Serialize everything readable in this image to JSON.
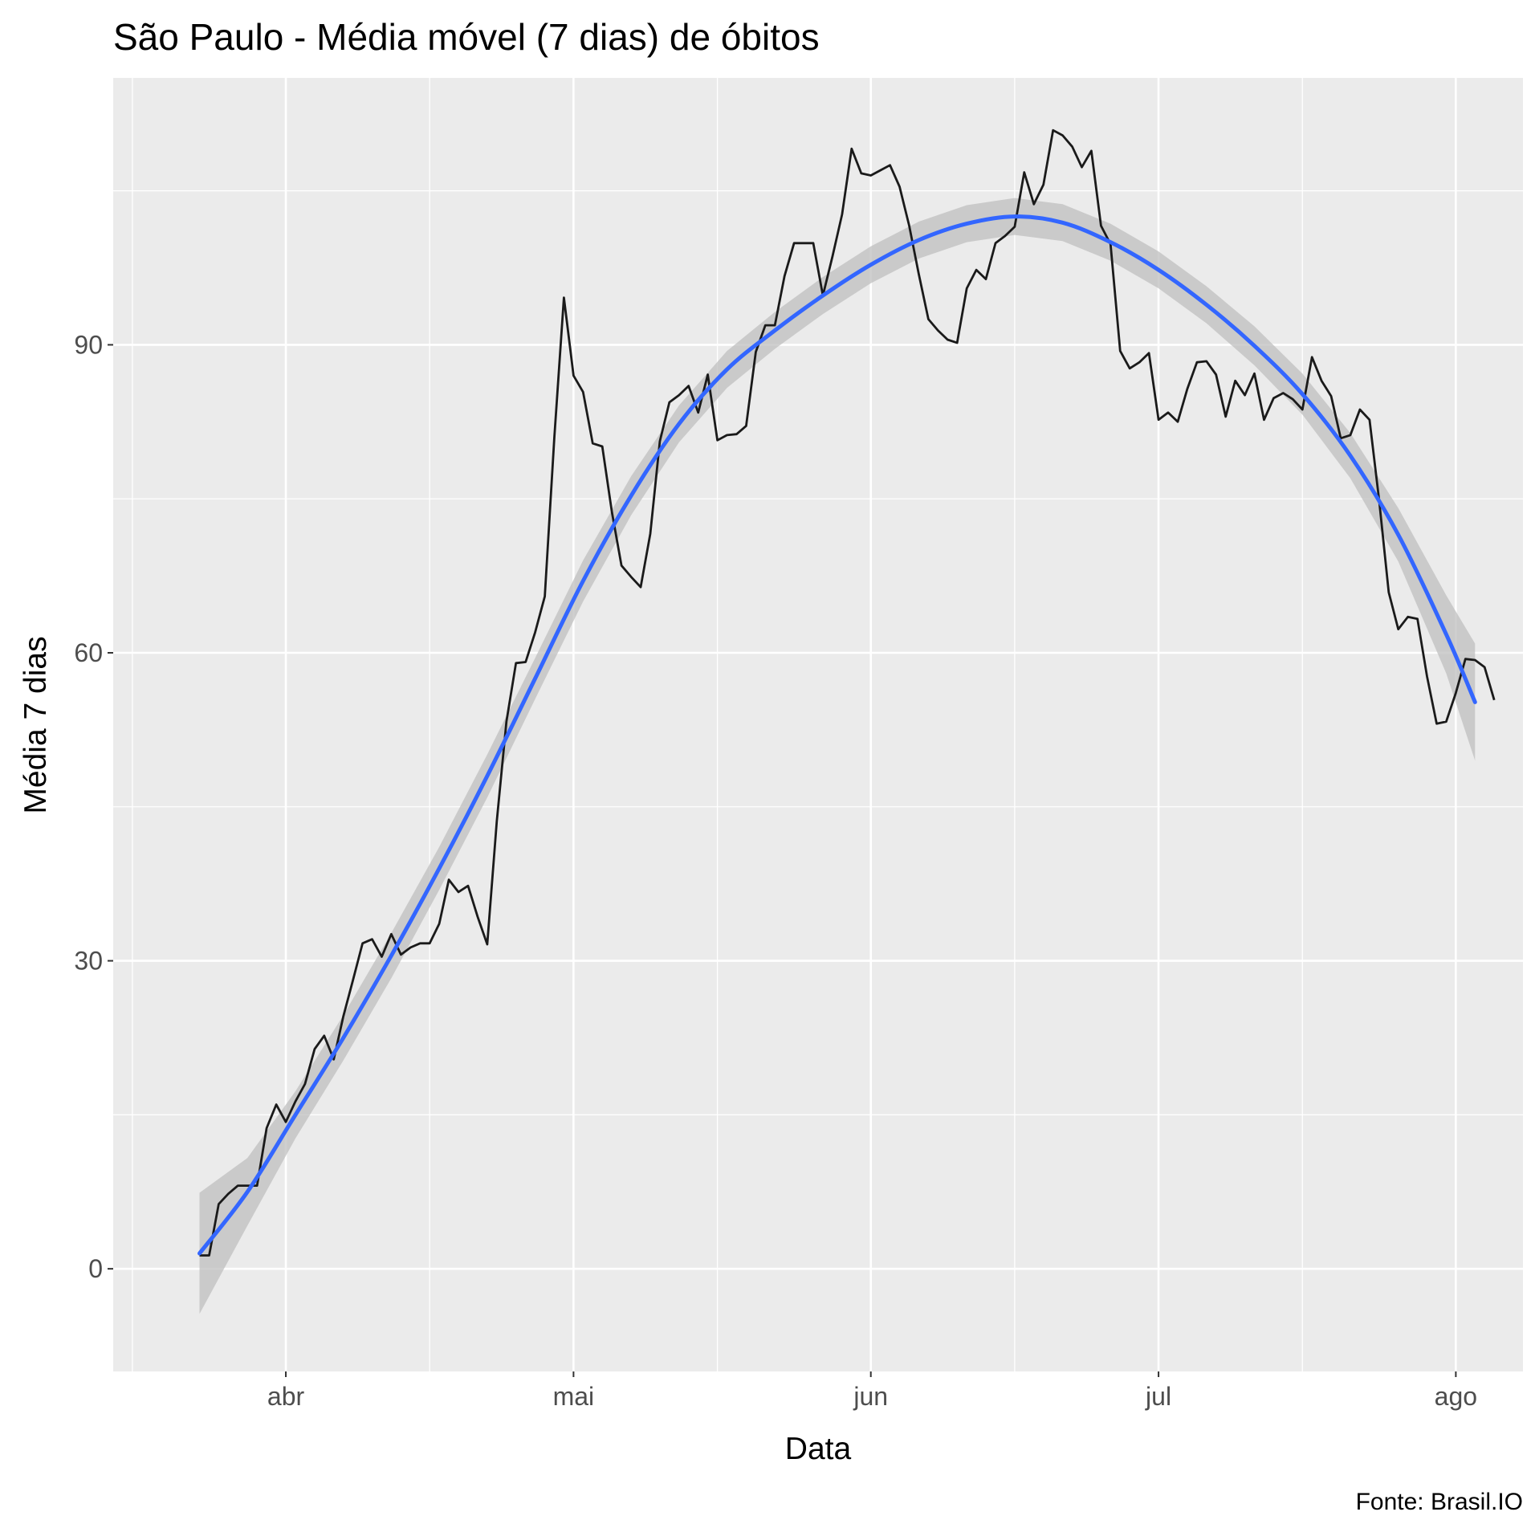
{
  "chart_data": {
    "type": "line",
    "title": "São Paulo - Média móvel (7 dias) de óbitos",
    "xlabel": "Data",
    "ylabel": "Média 7 dias",
    "caption": "Fonte: Brasil.IO",
    "x_axis": {
      "type": "date",
      "range": [
        "2020-03-14",
        "2020-08-08"
      ],
      "ticks": [
        {
          "date": "2020-04-01",
          "label": "abr"
        },
        {
          "date": "2020-05-01",
          "label": "mai"
        },
        {
          "date": "2020-06-01",
          "label": "jun"
        },
        {
          "date": "2020-07-01",
          "label": "jul"
        },
        {
          "date": "2020-08-01",
          "label": "ago"
        }
      ],
      "minor_breaks": [
        "2020-03-16",
        "2020-04-16",
        "2020-05-16",
        "2020-06-16",
        "2020-07-16"
      ]
    },
    "y_axis": {
      "range": [
        -10,
        116
      ],
      "ticks": [
        0,
        30,
        60,
        90
      ],
      "minor_breaks": [
        15,
        45,
        75,
        105
      ]
    },
    "grid": true,
    "colors": {
      "panel": "#ebebeb",
      "grid": "#ffffff",
      "series": "#1a1a1a",
      "smooth": "#3366ff",
      "ribbon": "#bfbfbf"
    },
    "series": [
      {
        "type": "line",
        "start_date": "2020-03-23",
        "values": [
          1.3,
          1.3,
          6.3,
          7.3,
          8.1,
          8.1,
          8.1,
          13.7,
          16.0,
          14.3,
          16.3,
          18.0,
          21.4,
          22.7,
          20.4,
          24.6,
          28.1,
          31.7,
          32.1,
          30.4,
          32.6,
          30.6,
          31.3,
          31.7,
          31.7,
          33.6,
          37.9,
          36.7,
          37.3,
          34.3,
          31.6,
          43.6,
          53.3,
          59.0,
          59.1,
          62.0,
          65.5,
          81.0,
          94.6,
          87.0,
          85.4,
          80.4,
          80.1,
          73.7,
          68.5,
          67.4,
          66.4,
          71.6,
          80.6,
          84.4,
          85.1,
          86.0,
          83.4,
          87.1,
          80.7,
          81.2,
          81.3,
          82.1,
          89.3,
          91.9,
          91.9,
          96.7,
          99.9,
          99.9,
          99.9,
          94.8,
          98.6,
          102.7,
          109.1,
          106.7,
          106.5,
          107.0,
          107.5,
          105.4,
          101.6,
          96.9,
          92.5,
          91.4,
          90.5,
          90.2,
          95.5,
          97.3,
          96.4,
          99.9,
          100.6,
          101.5,
          106.8,
          103.7,
          105.6,
          110.9,
          110.4,
          109.3,
          107.3,
          108.9,
          101.6,
          99.8,
          89.4,
          87.7,
          88.3,
          89.2,
          82.7,
          83.4,
          82.5,
          85.7,
          88.3,
          88.4,
          87.1,
          83.0,
          86.5,
          85.1,
          87.2,
          82.7,
          84.8,
          85.3,
          84.7,
          83.7,
          88.8,
          86.5,
          85.0,
          80.9,
          81.2,
          83.7,
          82.7,
          74.9,
          65.9,
          62.3,
          63.5,
          63.3,
          57.7,
          53.1,
          53.3,
          56.1,
          59.4,
          59.3,
          58.6,
          55.4
        ]
      },
      {
        "type": "smooth",
        "method": "loess",
        "points": [
          {
            "date": "2020-03-23",
            "y": 1.5,
            "lo": -4.4,
            "hi": 7.4
          },
          {
            "date": "2020-03-28",
            "y": 7.5,
            "lo": 4.2,
            "hi": 10.8
          },
          {
            "date": "2020-04-02",
            "y": 15.0,
            "lo": 12.7,
            "hi": 17.3
          },
          {
            "date": "2020-04-07",
            "y": 22.5,
            "lo": 20.3,
            "hi": 24.7
          },
          {
            "date": "2020-04-12",
            "y": 30.5,
            "lo": 28.3,
            "hi": 32.7
          },
          {
            "date": "2020-04-17",
            "y": 39.0,
            "lo": 36.9,
            "hi": 41.1
          },
          {
            "date": "2020-04-22",
            "y": 48.0,
            "lo": 45.9,
            "hi": 50.1
          },
          {
            "date": "2020-04-27",
            "y": 57.5,
            "lo": 55.5,
            "hi": 59.5
          },
          {
            "date": "2020-05-02",
            "y": 67.0,
            "lo": 65.0,
            "hi": 69.0
          },
          {
            "date": "2020-05-07",
            "y": 75.3,
            "lo": 73.4,
            "hi": 77.2
          },
          {
            "date": "2020-05-12",
            "y": 82.3,
            "lo": 80.5,
            "hi": 84.1
          },
          {
            "date": "2020-05-17",
            "y": 87.6,
            "lo": 85.8,
            "hi": 89.4
          },
          {
            "date": "2020-05-22",
            "y": 91.4,
            "lo": 89.6,
            "hi": 93.2
          },
          {
            "date": "2020-05-27",
            "y": 94.8,
            "lo": 93.0,
            "hi": 96.6
          },
          {
            "date": "2020-06-01",
            "y": 97.8,
            "lo": 96.0,
            "hi": 99.6
          },
          {
            "date": "2020-06-06",
            "y": 100.2,
            "lo": 98.4,
            "hi": 102.0
          },
          {
            "date": "2020-06-11",
            "y": 101.8,
            "lo": 100.0,
            "hi": 103.6
          },
          {
            "date": "2020-06-16",
            "y": 102.5,
            "lo": 100.7,
            "hi": 104.3
          },
          {
            "date": "2020-06-21",
            "y": 101.9,
            "lo": 100.1,
            "hi": 103.7
          },
          {
            "date": "2020-06-26",
            "y": 100.0,
            "lo": 98.2,
            "hi": 101.8
          },
          {
            "date": "2020-07-01",
            "y": 97.3,
            "lo": 95.5,
            "hi": 99.1
          },
          {
            "date": "2020-07-06",
            "y": 93.9,
            "lo": 92.1,
            "hi": 95.7
          },
          {
            "date": "2020-07-11",
            "y": 89.9,
            "lo": 88.0,
            "hi": 91.8
          },
          {
            "date": "2020-07-16",
            "y": 85.2,
            "lo": 83.2,
            "hi": 87.2
          },
          {
            "date": "2020-07-21",
            "y": 79.2,
            "lo": 77.0,
            "hi": 81.4
          },
          {
            "date": "2020-07-26",
            "y": 71.5,
            "lo": 68.9,
            "hi": 74.1
          },
          {
            "date": "2020-07-31",
            "y": 61.8,
            "lo": 58.0,
            "hi": 65.6
          },
          {
            "date": "2020-08-03",
            "y": 55.2,
            "lo": 49.5,
            "hi": 60.9
          }
        ]
      }
    ]
  }
}
